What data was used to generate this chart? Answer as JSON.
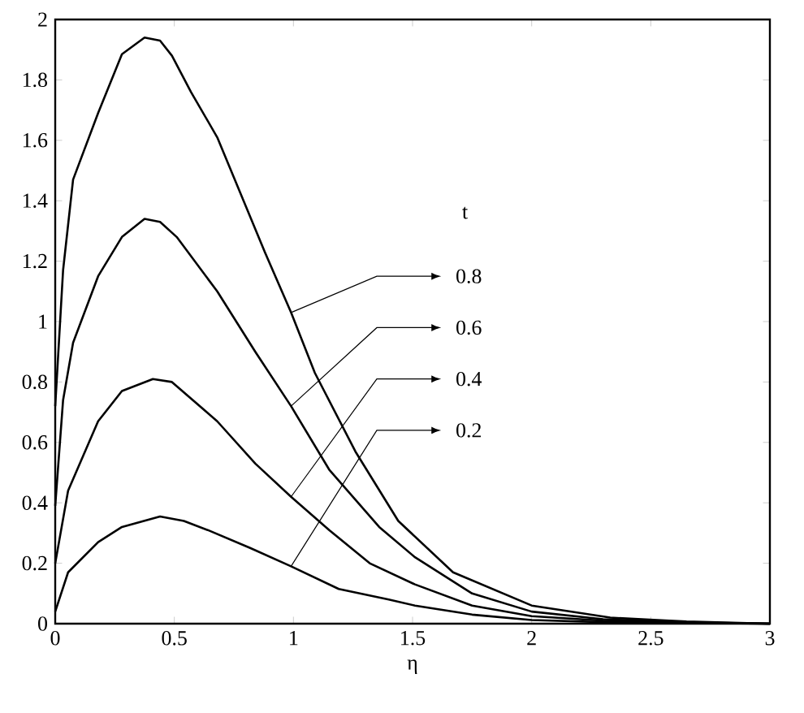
{
  "chart_data": {
    "type": "line",
    "xlabel": "η",
    "legend_title": "t",
    "legend": "right",
    "marker": "none",
    "line_style": "solid",
    "grid": false,
    "xlim": [
      0,
      3
    ],
    "ylim": [
      0,
      2
    ],
    "xticks": [
      0,
      0.5,
      1,
      1.5,
      2,
      2.5,
      3
    ],
    "yticks": [
      0,
      0.2,
      0.4,
      0.6,
      0.8,
      1,
      1.2,
      1.4,
      1.6,
      1.8,
      2
    ],
    "series": [
      {
        "name": "0.8",
        "color": "#000000",
        "x": [
          0,
          0.033,
          0.075,
          0.18,
          0.28,
          0.375,
          0.44,
          0.49,
          0.57,
          0.68,
          0.78,
          0.88,
          0.99,
          1.09,
          1.26,
          1.44,
          1.67,
          2.0,
          2.33,
          2.65,
          3.0
        ],
        "values": [
          0.72,
          1.17,
          1.47,
          1.69,
          1.885,
          1.94,
          1.93,
          1.88,
          1.76,
          1.61,
          1.42,
          1.23,
          1.03,
          0.83,
          0.57,
          0.34,
          0.17,
          0.06,
          0.02,
          0.007,
          0
        ]
      },
      {
        "name": "0.6",
        "color": "#000000",
        "x": [
          0,
          0.033,
          0.075,
          0.18,
          0.28,
          0.375,
          0.44,
          0.51,
          0.68,
          0.84,
          0.99,
          1.15,
          1.36,
          1.51,
          1.75,
          2.0,
          2.3,
          2.6,
          3.0
        ],
        "values": [
          0.39,
          0.74,
          0.93,
          1.15,
          1.28,
          1.34,
          1.33,
          1.28,
          1.1,
          0.9,
          0.72,
          0.51,
          0.32,
          0.22,
          0.1,
          0.04,
          0.015,
          0.005,
          0
        ]
      },
      {
        "name": "0.4",
        "color": "#000000",
        "x": [
          0,
          0.054,
          0.18,
          0.28,
          0.41,
          0.49,
          0.68,
          0.84,
          0.99,
          1.15,
          1.32,
          1.51,
          1.75,
          2.0,
          2.3,
          2.6,
          3.0
        ],
        "values": [
          0.2,
          0.44,
          0.67,
          0.77,
          0.81,
          0.8,
          0.67,
          0.53,
          0.42,
          0.31,
          0.2,
          0.13,
          0.06,
          0.025,
          0.01,
          0.003,
          0
        ]
      },
      {
        "name": "0.2",
        "color": "#000000",
        "x": [
          0,
          0.054,
          0.18,
          0.28,
          0.44,
          0.54,
          0.64,
          0.82,
          0.99,
          1.19,
          1.4,
          1.51,
          1.75,
          2.0,
          2.3,
          2.6,
          3.0
        ],
        "values": [
          0.04,
          0.17,
          0.27,
          0.32,
          0.355,
          0.34,
          0.31,
          0.25,
          0.19,
          0.115,
          0.08,
          0.06,
          0.03,
          0.012,
          0.005,
          0.002,
          0
        ]
      }
    ]
  }
}
